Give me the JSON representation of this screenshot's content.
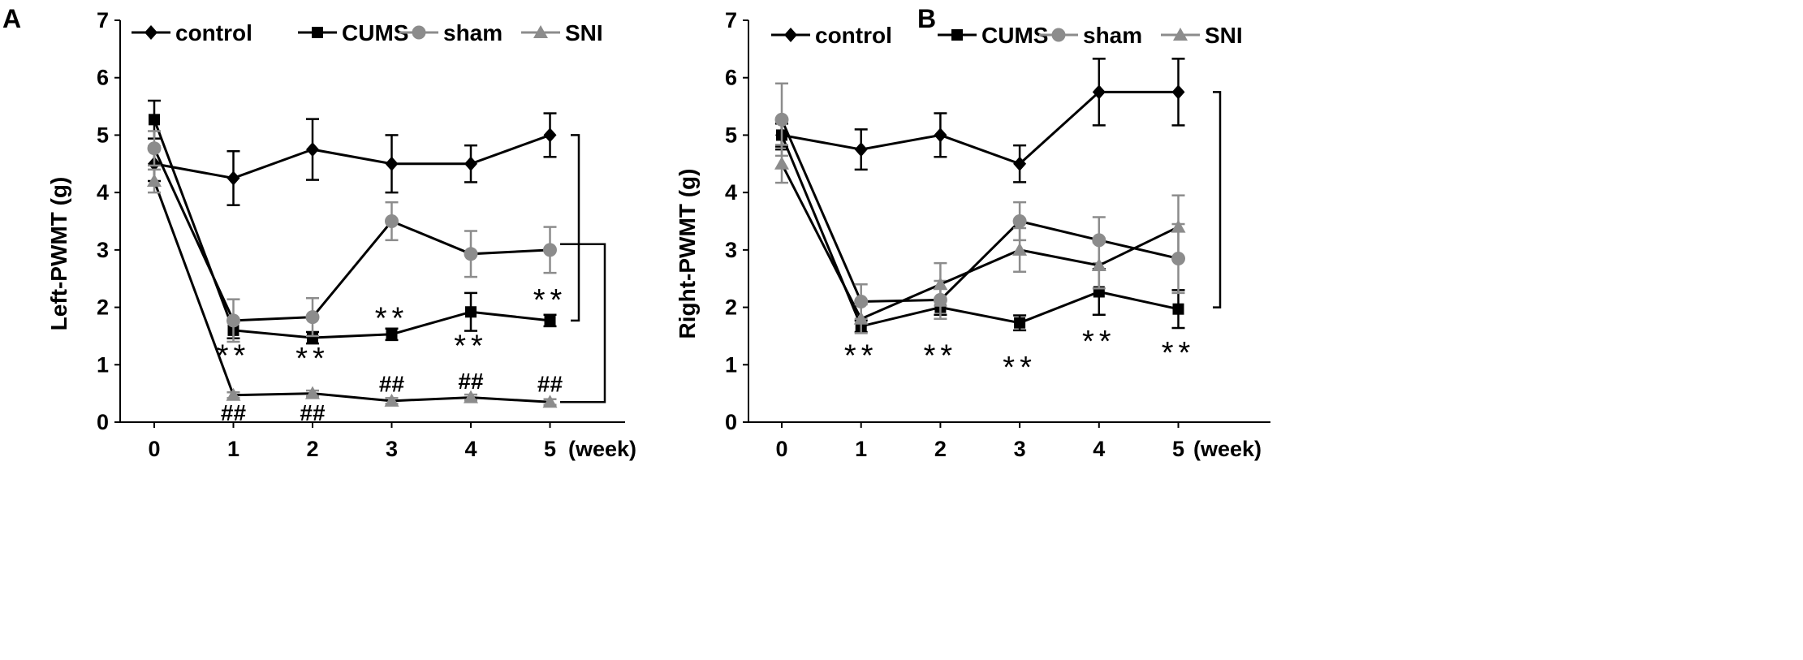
{
  "figure": {
    "panel_labels": [
      "A",
      "B"
    ]
  },
  "colors": {
    "black": "#000000",
    "gray": "#8c8c8c",
    "background": "#ffffff"
  },
  "chart_data": [
    {
      "type": "line",
      "panel": "A",
      "ylabel": "Left-PWMT (g)",
      "xlabel": "(week)",
      "ylim": [
        0,
        7
      ],
      "yticks": [
        0,
        1,
        2,
        3,
        4,
        5,
        6,
        7
      ],
      "x": [
        0,
        1,
        2,
        3,
        4,
        5
      ],
      "legend": [
        "control",
        "CUMS",
        "sham",
        "SNI"
      ],
      "series": [
        {
          "name": "control",
          "marker": "diamond",
          "color": "#000000",
          "values": [
            4.5,
            4.25,
            4.75,
            4.5,
            4.5,
            5.0
          ],
          "errors": [
            0.3,
            0.47,
            0.53,
            0.5,
            0.32,
            0.38
          ]
        },
        {
          "name": "CUMS",
          "marker": "square",
          "color": "#000000",
          "values": [
            5.27,
            1.6,
            1.47,
            1.53,
            1.92,
            1.77
          ],
          "errors": [
            0.33,
            0.14,
            0.1,
            0.1,
            0.33,
            0.1
          ]
        },
        {
          "name": "sham",
          "marker": "circle",
          "color": "#8c8c8c",
          "values": [
            4.77,
            1.77,
            1.83,
            3.5,
            2.93,
            3.0
          ],
          "errors": [
            0.3,
            0.37,
            0.33,
            0.33,
            0.4,
            0.4
          ]
        },
        {
          "name": "SNI",
          "marker": "triangle",
          "color": "#8c8c8c",
          "values": [
            4.2,
            0.47,
            0.5,
            0.37,
            0.43,
            0.35
          ],
          "errors": [
            0.2,
            0.05,
            0.05,
            0.05,
            0.05,
            0.05
          ]
        }
      ],
      "annotations": [
        {
          "text": "**",
          "x": 1,
          "y": 1.15
        },
        {
          "text": "**",
          "x": 2,
          "y": 1.1
        },
        {
          "text": "**",
          "x": 3,
          "y": 1.8
        },
        {
          "text": "**",
          "x": 4,
          "y": 1.32
        },
        {
          "text": "**",
          "x": 5,
          "y": 2.12
        },
        {
          "text": "##",
          "x": 1,
          "y": 0.2
        },
        {
          "text": "##",
          "x": 2,
          "y": 0.2
        },
        {
          "text": "##",
          "x": 3,
          "y": 0.7
        },
        {
          "text": "##",
          "x": 4,
          "y": 0.75
        },
        {
          "text": "##",
          "x": 5,
          "y": 0.7
        }
      ],
      "brackets": [
        {
          "from": 5.0,
          "to": 1.77
        },
        {
          "from": 3.1,
          "to": 0.35
        }
      ]
    },
    {
      "type": "line",
      "panel": "B",
      "ylabel": "Right-PWMT (g)",
      "xlabel": "(week)",
      "ylim": [
        0,
        7
      ],
      "yticks": [
        0,
        1,
        2,
        3,
        4,
        5,
        6,
        7
      ],
      "x": [
        0,
        1,
        2,
        3,
        4,
        5
      ],
      "legend": [
        "control",
        "CUMS",
        "sham",
        "SNI"
      ],
      "series": [
        {
          "name": "control",
          "marker": "diamond",
          "color": "#000000",
          "values": [
            5.0,
            4.75,
            5.0,
            4.5,
            5.75,
            5.75
          ],
          "errors": [
            0.25,
            0.35,
            0.38,
            0.32,
            0.58,
            0.58
          ]
        },
        {
          "name": "CUMS",
          "marker": "square",
          "color": "#000000",
          "values": [
            5.0,
            1.67,
            2.0,
            1.73,
            2.27,
            1.97
          ],
          "errors": [
            0.2,
            0.1,
            0.13,
            0.13,
            0.4,
            0.33
          ]
        },
        {
          "name": "sham",
          "marker": "circle",
          "color": "#8c8c8c",
          "values": [
            5.27,
            2.1,
            2.13,
            3.5,
            3.17,
            2.85
          ],
          "errors": [
            0.63,
            0.3,
            0.33,
            0.33,
            0.4,
            0.6
          ]
        },
        {
          "name": "SNI",
          "marker": "triangle",
          "color": "#8c8c8c",
          "values": [
            4.5,
            1.8,
            2.4,
            3.0,
            2.73,
            3.4
          ],
          "errors": [
            0.33,
            0.25,
            0.37,
            0.38,
            0.4,
            0.55
          ]
        }
      ],
      "annotations": [
        {
          "text": "**",
          "x": 1,
          "y": 1.15
        },
        {
          "text": "**",
          "x": 2,
          "y": 1.15
        },
        {
          "text": "**",
          "x": 3,
          "y": 0.95
        },
        {
          "text": "**",
          "x": 4,
          "y": 1.4
        },
        {
          "text": "**",
          "x": 5,
          "y": 1.2
        }
      ],
      "brackets": [
        {
          "from": 5.75,
          "to": 2.0
        }
      ]
    }
  ]
}
